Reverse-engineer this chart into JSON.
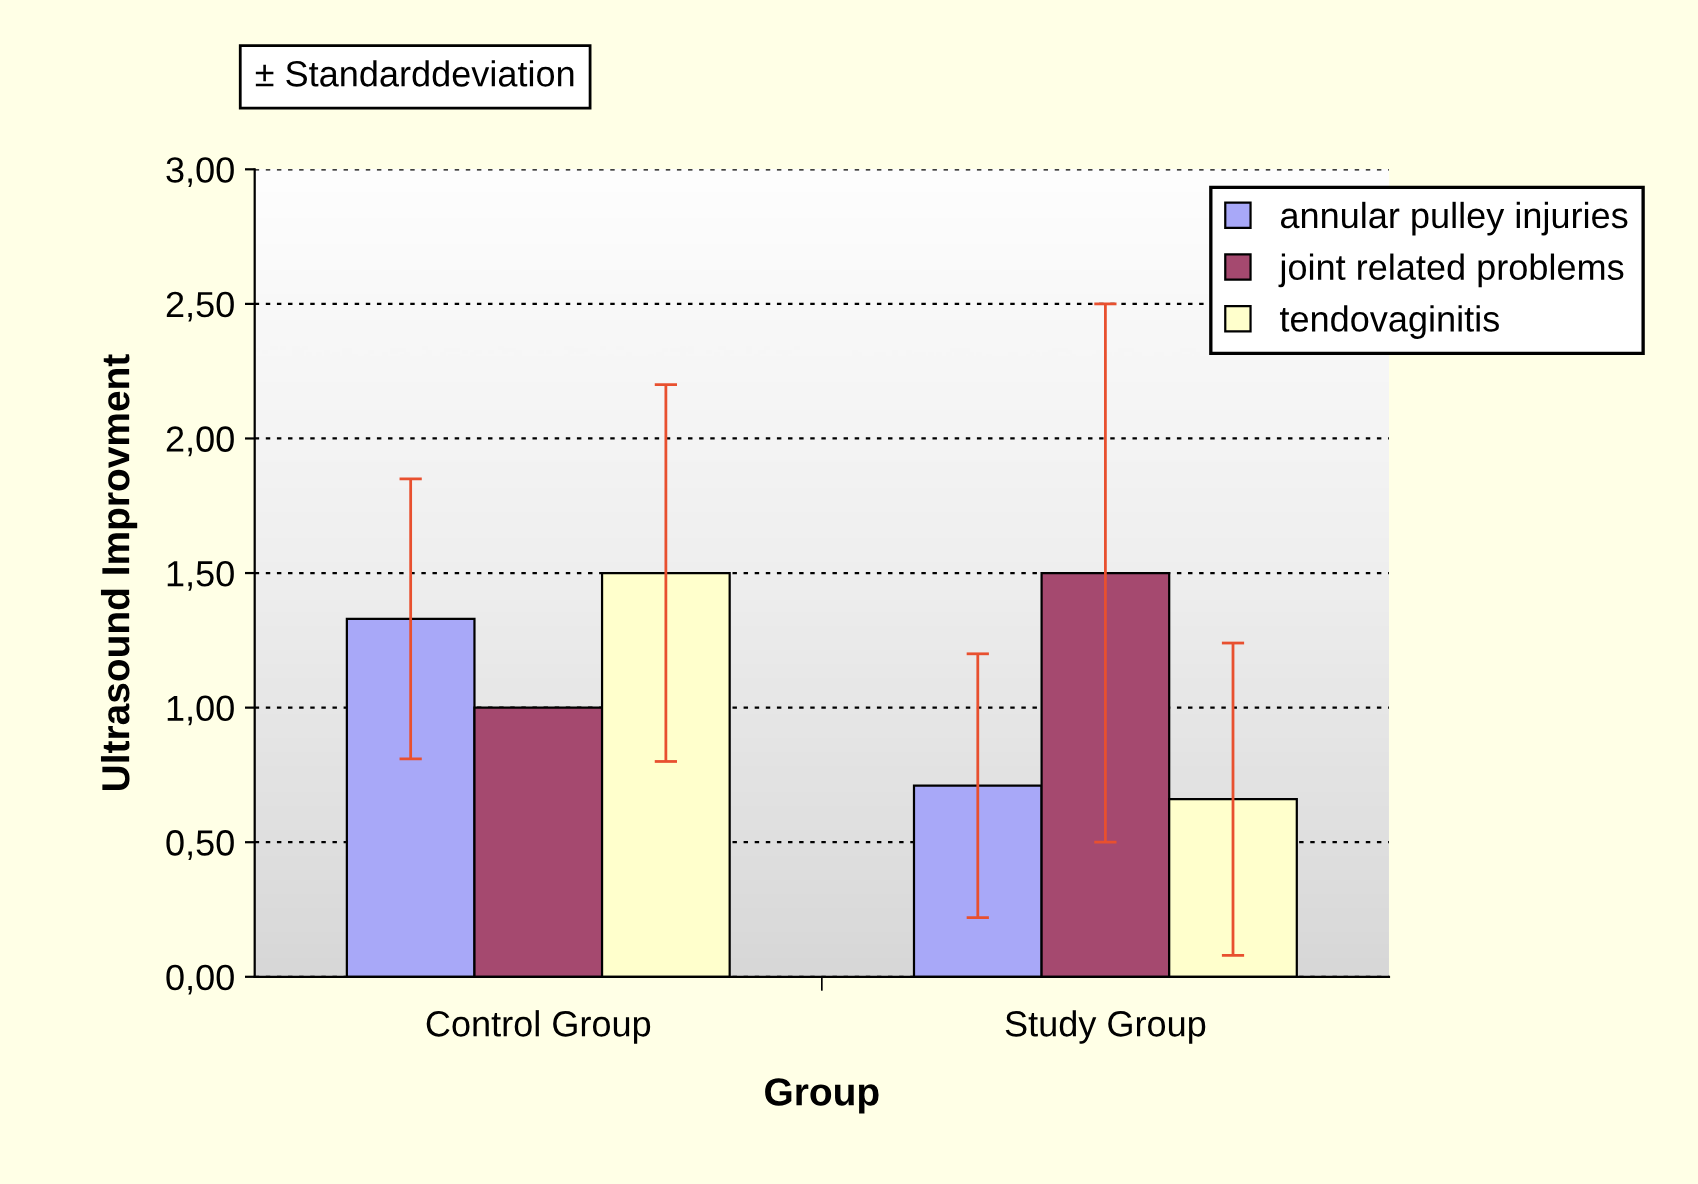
{
  "chart_data": {
    "type": "bar",
    "xlabel": "Group",
    "ylabel": "Ultrasound Improvment",
    "categories": [
      "Control Group",
      "Study Group"
    ],
    "series": [
      {
        "name": "annular pulley injuries",
        "color": "#a8a8f8",
        "values": [
          1.33,
          0.71
        ],
        "errors": [
          0.52,
          0.49
        ]
      },
      {
        "name": "joint related problems",
        "color": "#a5496f",
        "values": [
          1.0,
          1.5
        ],
        "errors": [
          null,
          1.0
        ]
      },
      {
        "name": "tendovaginitis",
        "color": "#ffffcc",
        "values": [
          1.5,
          0.66
        ],
        "errors": [
          0.7,
          0.58
        ]
      }
    ],
    "ylim": [
      0,
      3
    ],
    "yticks": [
      {
        "value": 0,
        "label": "0,00"
      },
      {
        "value": 0.5,
        "label": "0,50"
      },
      {
        "value": 1,
        "label": "1,00"
      },
      {
        "value": 1.5,
        "label": "1,50"
      },
      {
        "value": 2,
        "label": "2,00"
      },
      {
        "value": 2.5,
        "label": "2,50"
      },
      {
        "value": 3,
        "label": "3,00"
      }
    ],
    "grid": "y",
    "legend": "top right",
    "annotations": [
      "± Standarddeviation"
    ]
  }
}
